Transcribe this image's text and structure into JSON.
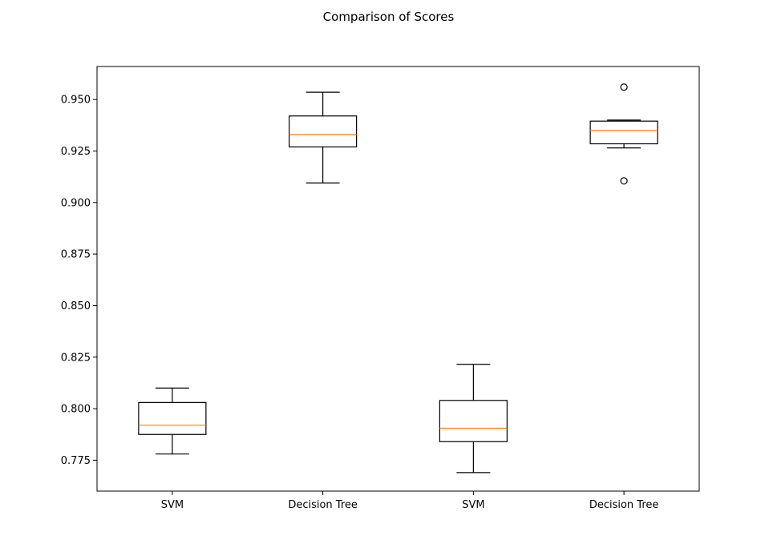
{
  "chart_data": {
    "type": "box",
    "title": "Comparison of Scores",
    "xlabel": "",
    "ylabel": "",
    "ylim": [
      0.76,
      0.966
    ],
    "yticks": [
      0.775,
      0.8,
      0.825,
      0.85,
      0.875,
      0.9,
      0.925,
      0.95
    ],
    "ytick_labels": [
      "0.775",
      "0.800",
      "0.825",
      "0.850",
      "0.875",
      "0.900",
      "0.925",
      "0.950"
    ],
    "grid": false,
    "colors": {
      "box": "#000000",
      "median": "#ff7f0e",
      "background": "#ffffff"
    },
    "categories": [
      "SVM",
      "Decision Tree",
      "SVM",
      "Decision Tree"
    ],
    "boxes": [
      {
        "label": "SVM",
        "whisker_low": 0.778,
        "q1": 0.7875,
        "median": 0.792,
        "q3": 0.803,
        "whisker_high": 0.81,
        "outliers": []
      },
      {
        "label": "Decision Tree",
        "whisker_low": 0.9095,
        "q1": 0.927,
        "median": 0.933,
        "q3": 0.942,
        "whisker_high": 0.9535,
        "outliers": []
      },
      {
        "label": "SVM",
        "whisker_low": 0.769,
        "q1": 0.784,
        "median": 0.7905,
        "q3": 0.804,
        "whisker_high": 0.8215,
        "outliers": []
      },
      {
        "label": "Decision Tree",
        "whisker_low": 0.9265,
        "q1": 0.9285,
        "median": 0.935,
        "q3": 0.9395,
        "whisker_high": 0.94,
        "outliers": [
          0.9105,
          0.956
        ]
      }
    ]
  }
}
